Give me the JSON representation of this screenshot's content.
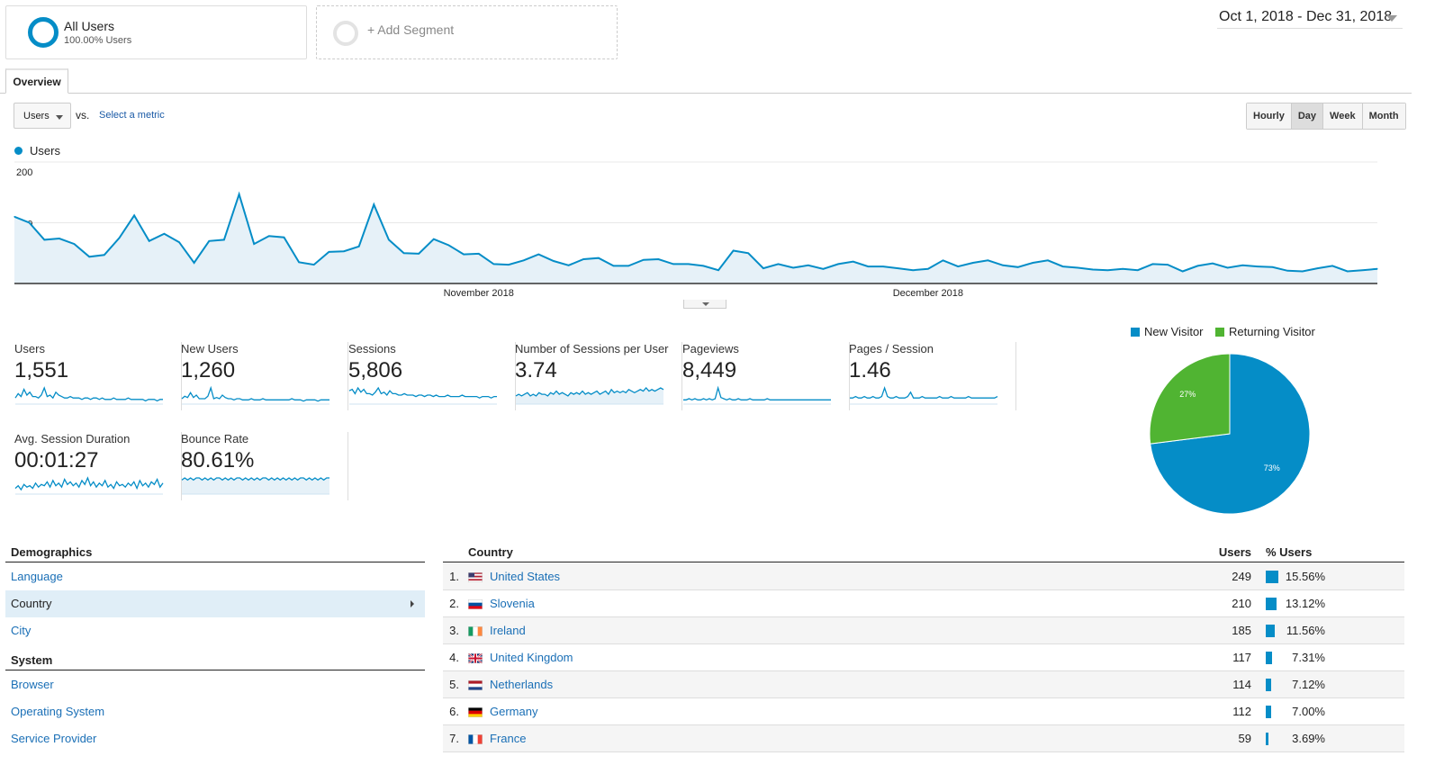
{
  "segments": {
    "all_users": {
      "title": "All Users",
      "subtitle": "100.00% Users"
    },
    "add": {
      "label": "+ Add Segment"
    }
  },
  "date_range": "Oct 1, 2018 - Dec 31, 2018",
  "tab": "Overview",
  "controls": {
    "metric_select": "Users",
    "vs": "vs.",
    "select_metric": "Select a metric",
    "time_buttons": [
      "Hourly",
      "Day",
      "Week",
      "Month"
    ],
    "active_time": "Day"
  },
  "chart_data": [
    {
      "type": "area",
      "series": [
        {
          "name": "Users",
          "color": "#058dc7"
        }
      ],
      "y_ticks": [
        "200",
        "100"
      ],
      "ylim": [
        0,
        200
      ],
      "x_labels": [
        "November 2018",
        "December 2018"
      ],
      "values": [
        110,
        100,
        72,
        74,
        65,
        44,
        47,
        75,
        112,
        70,
        82,
        68,
        34,
        70,
        72,
        147,
        65,
        78,
        76,
        35,
        31,
        52,
        53,
        61,
        130,
        72,
        50,
        49,
        73,
        63,
        48,
        49,
        32,
        31,
        38,
        48,
        37,
        30,
        40,
        42,
        29,
        29,
        39,
        40,
        32,
        32,
        29,
        22,
        54,
        50,
        25,
        32,
        26,
        30,
        24,
        32,
        36,
        28,
        28,
        25,
        22,
        24,
        38,
        28,
        34,
        38,
        30,
        27,
        34,
        38,
        28,
        26,
        23,
        22,
        24,
        22,
        32,
        31,
        20,
        29,
        33,
        26,
        30,
        28,
        27,
        21,
        20,
        25,
        29,
        20,
        22,
        24
      ]
    },
    {
      "type": "pie",
      "legend": [
        {
          "label": "New Visitor",
          "color": "#058dc7"
        },
        {
          "label": "Returning Visitor",
          "color": "#50b432"
        }
      ],
      "values": [
        73,
        27
      ],
      "labels": [
        "73%",
        "27%"
      ]
    }
  ],
  "metrics": [
    {
      "label": "Users",
      "value": "1,551",
      "spark": [
        3,
        6,
        4,
        9,
        5,
        7,
        4,
        4,
        3,
        5,
        10,
        4,
        5,
        3,
        7,
        5,
        4,
        3,
        3,
        4,
        3,
        3,
        3,
        2,
        3,
        3,
        2,
        3,
        3,
        2,
        3,
        2,
        2,
        2,
        3,
        2,
        2,
        2,
        2,
        3,
        2,
        2,
        2,
        2,
        2,
        1,
        2,
        2,
        2,
        1,
        2,
        2
      ],
      "fill": false
    },
    {
      "label": "New Users",
      "value": "1,260",
      "spark": [
        3,
        5,
        4,
        8,
        4,
        6,
        3,
        3,
        3,
        5,
        12,
        3,
        4,
        3,
        6,
        4,
        3,
        3,
        2,
        3,
        3,
        2,
        2,
        2,
        3,
        2,
        2,
        2,
        3,
        2,
        2,
        2,
        2,
        2,
        2,
        2,
        2,
        2,
        3,
        2,
        2,
        2,
        1,
        2,
        2,
        2,
        2,
        1,
        2,
        2,
        2,
        2
      ],
      "fill": false
    },
    {
      "label": "Sessions",
      "value": "5,806",
      "spark": [
        8,
        9,
        6,
        10,
        7,
        9,
        6,
        6,
        5,
        7,
        10,
        6,
        7,
        5,
        8,
        6,
        6,
        5,
        5,
        6,
        5,
        5,
        5,
        4,
        5,
        5,
        4,
        5,
        5,
        4,
        5,
        4,
        4,
        4,
        5,
        4,
        4,
        4,
        4,
        5,
        4,
        4,
        4,
        4,
        4,
        3,
        4,
        4,
        4,
        3,
        4,
        4
      ],
      "fill": false
    },
    {
      "label": "Number of Sessions per User",
      "value": "3.74",
      "spark": [
        4,
        5,
        4,
        5,
        6,
        4,
        5,
        4,
        6,
        5,
        5,
        4,
        6,
        5,
        7,
        5,
        6,
        5,
        4,
        6,
        5,
        6,
        5,
        7,
        5,
        6,
        5,
        6,
        7,
        5,
        6,
        7,
        5,
        8,
        6,
        7,
        6,
        7,
        6,
        8,
        7,
        6,
        7,
        8,
        7,
        9,
        7,
        8,
        7,
        8,
        9,
        8
      ],
      "fill": true
    },
    {
      "label": "Pageviews",
      "value": "8,449",
      "spark": [
        2,
        2,
        3,
        2,
        3,
        2,
        2,
        3,
        2,
        3,
        2,
        3,
        12,
        4,
        3,
        2,
        3,
        2,
        2,
        3,
        2,
        2,
        2,
        3,
        2,
        2,
        2,
        2,
        2,
        3,
        2,
        2,
        2,
        2,
        2,
        2,
        2,
        2,
        2,
        2,
        2,
        2,
        2,
        2,
        2,
        2,
        2,
        2,
        2,
        2,
        2,
        2
      ],
      "fill": false
    },
    {
      "label": "Pages / Session",
      "value": "1.46",
      "spark": [
        3,
        3,
        4,
        3,
        3,
        4,
        3,
        3,
        4,
        3,
        3,
        4,
        10,
        4,
        3,
        3,
        4,
        3,
        3,
        3,
        4,
        7,
        3,
        3,
        3,
        4,
        3,
        3,
        3,
        3,
        3,
        4,
        3,
        3,
        3,
        4,
        3,
        3,
        3,
        3,
        3,
        4,
        3,
        3,
        3,
        3,
        3,
        3,
        3,
        3,
        3,
        4
      ],
      "fill": false
    },
    {
      "label": "Avg. Session Duration",
      "value": "00:01:27",
      "spark": [
        3,
        5,
        2,
        6,
        4,
        5,
        3,
        7,
        4,
        6,
        5,
        8,
        4,
        9,
        5,
        7,
        4,
        10,
        6,
        8,
        5,
        7,
        4,
        9,
        6,
        11,
        5,
        8,
        4,
        7,
        5,
        9,
        4,
        6,
        3,
        8,
        5,
        6,
        4,
        7,
        5,
        8,
        3,
        9,
        5,
        7,
        4,
        8,
        6,
        10,
        4,
        7
      ],
      "fill": false
    },
    {
      "label": "Bounce Rate",
      "value": "80.61%",
      "spark": [
        6,
        7,
        6,
        7,
        6,
        7,
        7,
        6,
        7,
        6,
        7,
        6,
        7,
        7,
        6,
        7,
        6,
        7,
        6,
        7,
        7,
        6,
        7,
        6,
        7,
        6,
        7,
        6,
        7,
        7,
        6,
        7,
        6,
        7,
        6,
        7,
        6,
        7,
        6,
        7,
        6,
        7,
        7,
        6,
        7,
        6,
        7,
        6,
        7,
        6,
        7,
        7
      ],
      "fill": true
    }
  ],
  "demographics": {
    "title": "Demographics",
    "items": [
      "Language",
      "Country",
      "City"
    ],
    "active": "Country"
  },
  "system": {
    "title": "System",
    "items": [
      "Browser",
      "Operating System",
      "Service Provider"
    ]
  },
  "table": {
    "headers": {
      "country": "Country",
      "users": "Users",
      "pct": "% Users"
    },
    "rows": [
      {
        "rank": "1.",
        "country": "United States",
        "flag": "us-flag",
        "users": "249",
        "pct": "15.56%",
        "share": 15.56
      },
      {
        "rank": "2.",
        "country": "Slovenia",
        "flag": "si-flag",
        "users": "210",
        "pct": "13.12%",
        "share": 13.12
      },
      {
        "rank": "3.",
        "country": "Ireland",
        "flag": "ie-flag",
        "users": "185",
        "pct": "11.56%",
        "share": 11.56
      },
      {
        "rank": "4.",
        "country": "United Kingdom",
        "flag": "gb-flag",
        "users": "117",
        "pct": "7.31%",
        "share": 7.31
      },
      {
        "rank": "5.",
        "country": "Netherlands",
        "flag": "nl-flag",
        "users": "114",
        "pct": "7.12%",
        "share": 7.12
      },
      {
        "rank": "6.",
        "country": "Germany",
        "flag": "de-flag",
        "users": "112",
        "pct": "7.00%",
        "share": 7.0
      },
      {
        "rank": "7.",
        "country": "France",
        "flag": "fr-flag",
        "users": "59",
        "pct": "3.69%",
        "share": 3.69
      }
    ]
  }
}
